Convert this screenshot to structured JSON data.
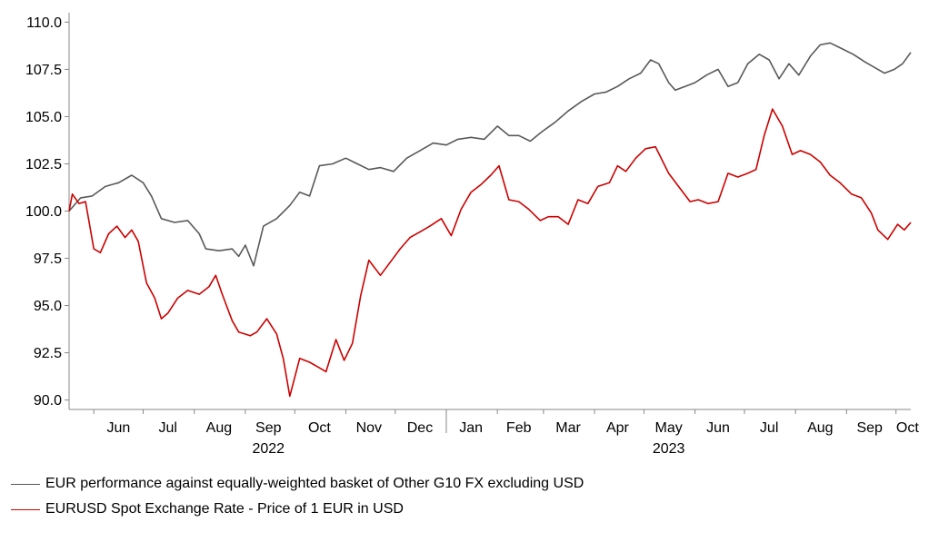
{
  "chart_data": {
    "type": "line",
    "title": "",
    "xlabel": "",
    "ylabel": "",
    "ylim": [
      89.5,
      110.5
    ],
    "yticks": [
      "90.0",
      "92.5",
      "95.0",
      "97.5",
      "100.0",
      "102.5",
      "105.0",
      "107.5",
      "110.0"
    ],
    "ytick_values": [
      90,
      92.5,
      95,
      97.5,
      100,
      102.5,
      105,
      107.5,
      110
    ],
    "x_start": "2022-05-17",
    "x_end": "2023-10-10",
    "month_labels": [
      {
        "label": "Jun",
        "date": "2022-06-16"
      },
      {
        "label": "Jul",
        "date": "2022-07-16"
      },
      {
        "label": "Aug",
        "date": "2022-08-16"
      },
      {
        "label": "Sep",
        "date": "2022-09-15"
      },
      {
        "label": "Oct",
        "date": "2022-10-16"
      },
      {
        "label": "Nov",
        "date": "2022-11-15"
      },
      {
        "label": "Dec",
        "date": "2022-12-16"
      },
      {
        "label": "Jan",
        "date": "2023-01-16"
      },
      {
        "label": "Feb",
        "date": "2023-02-14"
      },
      {
        "label": "Mar",
        "date": "2023-03-16"
      },
      {
        "label": "Apr",
        "date": "2023-04-15"
      },
      {
        "label": "May",
        "date": "2023-05-16"
      },
      {
        "label": "Jun",
        "date": "2023-06-15"
      },
      {
        "label": "Jul",
        "date": "2023-07-16"
      },
      {
        "label": "Aug",
        "date": "2023-08-16"
      },
      {
        "label": "Sep",
        "date": "2023-09-15"
      },
      {
        "label": "Oct",
        "date": "2023-10-08"
      }
    ],
    "year_labels": [
      {
        "label": "2022",
        "date": "2022-09-15"
      },
      {
        "label": "2023",
        "date": "2023-05-16"
      }
    ],
    "year_divider_date": "2023-01-01",
    "legend_position": "bottom-left",
    "grid": false,
    "series": [
      {
        "name": "EUR performance against equally-weighted basket of Other G10 FX excluding USD",
        "color": "#595959",
        "points": [
          [
            "2022-05-17",
            100.0
          ],
          [
            "2022-05-24",
            100.7
          ],
          [
            "2022-05-31",
            100.8
          ],
          [
            "2022-06-08",
            101.3
          ],
          [
            "2022-06-16",
            101.5
          ],
          [
            "2022-06-24",
            101.9
          ],
          [
            "2022-07-01",
            101.5
          ],
          [
            "2022-07-06",
            100.8
          ],
          [
            "2022-07-12",
            99.6
          ],
          [
            "2022-07-20",
            99.4
          ],
          [
            "2022-07-28",
            99.5
          ],
          [
            "2022-08-04",
            98.8
          ],
          [
            "2022-08-08",
            98.0
          ],
          [
            "2022-08-16",
            97.9
          ],
          [
            "2022-08-24",
            98.0
          ],
          [
            "2022-08-28",
            97.6
          ],
          [
            "2022-09-01",
            98.2
          ],
          [
            "2022-09-06",
            97.1
          ],
          [
            "2022-09-12",
            99.2
          ],
          [
            "2022-09-20",
            99.6
          ],
          [
            "2022-09-28",
            100.3
          ],
          [
            "2022-10-04",
            101.0
          ],
          [
            "2022-10-10",
            100.8
          ],
          [
            "2022-10-16",
            102.4
          ],
          [
            "2022-10-24",
            102.5
          ],
          [
            "2022-11-01",
            102.8
          ],
          [
            "2022-11-08",
            102.5
          ],
          [
            "2022-11-15",
            102.2
          ],
          [
            "2022-11-22",
            102.3
          ],
          [
            "2022-11-30",
            102.1
          ],
          [
            "2022-12-08",
            102.8
          ],
          [
            "2022-12-16",
            103.2
          ],
          [
            "2022-12-24",
            103.6
          ],
          [
            "2023-01-01",
            103.5
          ],
          [
            "2023-01-08",
            103.8
          ],
          [
            "2023-01-16",
            103.9
          ],
          [
            "2023-01-24",
            103.8
          ],
          [
            "2023-02-01",
            104.5
          ],
          [
            "2023-02-08",
            104.0
          ],
          [
            "2023-02-14",
            104.0
          ],
          [
            "2023-02-21",
            103.7
          ],
          [
            "2023-02-28",
            104.2
          ],
          [
            "2023-03-08",
            104.7
          ],
          [
            "2023-03-16",
            105.3
          ],
          [
            "2023-03-24",
            105.8
          ],
          [
            "2023-04-01",
            106.2
          ],
          [
            "2023-04-08",
            106.3
          ],
          [
            "2023-04-15",
            106.6
          ],
          [
            "2023-04-22",
            107.0
          ],
          [
            "2023-04-29",
            107.3
          ],
          [
            "2023-05-05",
            108.0
          ],
          [
            "2023-05-10",
            107.8
          ],
          [
            "2023-05-16",
            106.8
          ],
          [
            "2023-05-20",
            106.4
          ],
          [
            "2023-05-26",
            106.6
          ],
          [
            "2023-06-01",
            106.8
          ],
          [
            "2023-06-08",
            107.2
          ],
          [
            "2023-06-15",
            107.5
          ],
          [
            "2023-06-21",
            106.6
          ],
          [
            "2023-06-27",
            106.8
          ],
          [
            "2023-07-03",
            107.8
          ],
          [
            "2023-07-10",
            108.3
          ],
          [
            "2023-07-16",
            108.0
          ],
          [
            "2023-07-22",
            107.0
          ],
          [
            "2023-07-28",
            107.8
          ],
          [
            "2023-08-03",
            107.2
          ],
          [
            "2023-08-10",
            108.2
          ],
          [
            "2023-08-16",
            108.8
          ],
          [
            "2023-08-22",
            108.9
          ],
          [
            "2023-08-29",
            108.6
          ],
          [
            "2023-09-05",
            108.3
          ],
          [
            "2023-09-12",
            107.9
          ],
          [
            "2023-09-18",
            107.6
          ],
          [
            "2023-09-24",
            107.3
          ],
          [
            "2023-09-30",
            107.5
          ],
          [
            "2023-10-05",
            107.8
          ],
          [
            "2023-10-10",
            108.4
          ]
        ]
      },
      {
        "name": "EURUSD Spot Exchange Rate - Price of 1 EUR in USD",
        "color": "#cc0000",
        "points": [
          [
            "2022-05-17",
            100.0
          ],
          [
            "2022-05-19",
            100.9
          ],
          [
            "2022-05-23",
            100.4
          ],
          [
            "2022-05-27",
            100.5
          ],
          [
            "2022-06-01",
            98.0
          ],
          [
            "2022-06-05",
            97.8
          ],
          [
            "2022-06-10",
            98.8
          ],
          [
            "2022-06-15",
            99.2
          ],
          [
            "2022-06-20",
            98.6
          ],
          [
            "2022-06-24",
            99.0
          ],
          [
            "2022-06-28",
            98.4
          ],
          [
            "2022-07-03",
            96.2
          ],
          [
            "2022-07-08",
            95.4
          ],
          [
            "2022-07-12",
            94.3
          ],
          [
            "2022-07-16",
            94.6
          ],
          [
            "2022-07-22",
            95.4
          ],
          [
            "2022-07-28",
            95.8
          ],
          [
            "2022-08-04",
            95.6
          ],
          [
            "2022-08-10",
            96.0
          ],
          [
            "2022-08-14",
            96.6
          ],
          [
            "2022-08-18",
            95.6
          ],
          [
            "2022-08-24",
            94.2
          ],
          [
            "2022-08-28",
            93.6
          ],
          [
            "2022-09-04",
            93.4
          ],
          [
            "2022-09-08",
            93.6
          ],
          [
            "2022-09-14",
            94.3
          ],
          [
            "2022-09-20",
            93.5
          ],
          [
            "2022-09-24",
            92.2
          ],
          [
            "2022-09-28",
            90.2
          ],
          [
            "2022-10-04",
            92.2
          ],
          [
            "2022-10-10",
            92.0
          ],
          [
            "2022-10-14",
            91.8
          ],
          [
            "2022-10-20",
            91.5
          ],
          [
            "2022-10-26",
            93.2
          ],
          [
            "2022-10-31",
            92.1
          ],
          [
            "2022-11-05",
            93.0
          ],
          [
            "2022-11-10",
            95.5
          ],
          [
            "2022-11-15",
            97.4
          ],
          [
            "2022-11-22",
            96.6
          ],
          [
            "2022-11-28",
            97.3
          ],
          [
            "2022-12-04",
            98.0
          ],
          [
            "2022-12-10",
            98.6
          ],
          [
            "2022-12-16",
            98.9
          ],
          [
            "2022-12-22",
            99.2
          ],
          [
            "2022-12-29",
            99.6
          ],
          [
            "2023-01-04",
            98.7
          ],
          [
            "2023-01-10",
            100.1
          ],
          [
            "2023-01-16",
            101.0
          ],
          [
            "2023-01-22",
            101.4
          ],
          [
            "2023-01-28",
            101.9
          ],
          [
            "2023-02-02",
            102.4
          ],
          [
            "2023-02-08",
            100.6
          ],
          [
            "2023-02-14",
            100.5
          ],
          [
            "2023-02-20",
            100.1
          ],
          [
            "2023-02-27",
            99.5
          ],
          [
            "2023-03-04",
            99.7
          ],
          [
            "2023-03-10",
            99.7
          ],
          [
            "2023-03-16",
            99.3
          ],
          [
            "2023-03-22",
            100.6
          ],
          [
            "2023-03-28",
            100.4
          ],
          [
            "2023-04-03",
            101.3
          ],
          [
            "2023-04-10",
            101.5
          ],
          [
            "2023-04-15",
            102.4
          ],
          [
            "2023-04-20",
            102.1
          ],
          [
            "2023-04-26",
            102.8
          ],
          [
            "2023-05-02",
            103.3
          ],
          [
            "2023-05-08",
            103.4
          ],
          [
            "2023-05-16",
            102.0
          ],
          [
            "2023-05-22",
            101.3
          ],
          [
            "2023-05-29",
            100.5
          ],
          [
            "2023-06-03",
            100.6
          ],
          [
            "2023-06-09",
            100.4
          ],
          [
            "2023-06-15",
            100.5
          ],
          [
            "2023-06-21",
            102.0
          ],
          [
            "2023-06-27",
            101.8
          ],
          [
            "2023-07-03",
            102.0
          ],
          [
            "2023-07-08",
            102.2
          ],
          [
            "2023-07-13",
            104.0
          ],
          [
            "2023-07-18",
            105.4
          ],
          [
            "2023-07-24",
            104.5
          ],
          [
            "2023-07-30",
            103.0
          ],
          [
            "2023-08-04",
            103.2
          ],
          [
            "2023-08-10",
            103.0
          ],
          [
            "2023-08-16",
            102.6
          ],
          [
            "2023-08-22",
            101.9
          ],
          [
            "2023-08-28",
            101.5
          ],
          [
            "2023-09-04",
            100.9
          ],
          [
            "2023-09-10",
            100.7
          ],
          [
            "2023-09-16",
            99.9
          ],
          [
            "2023-09-20",
            99.0
          ],
          [
            "2023-09-26",
            98.5
          ],
          [
            "2023-10-02",
            99.3
          ],
          [
            "2023-10-06",
            99.0
          ],
          [
            "2023-10-10",
            99.4
          ]
        ]
      }
    ]
  }
}
